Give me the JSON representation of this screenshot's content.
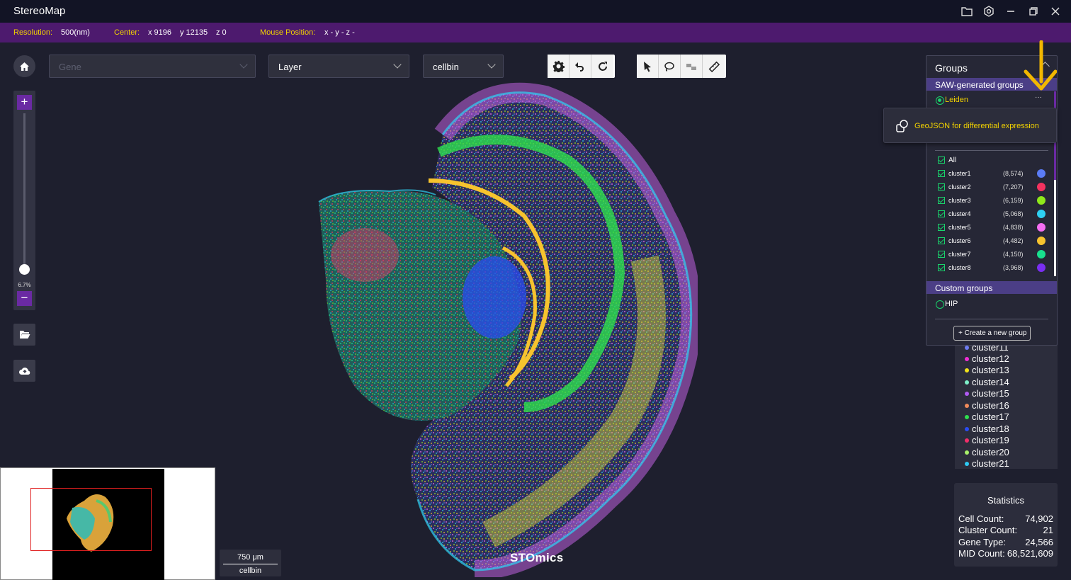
{
  "app": {
    "title": "StereoMap"
  },
  "infobar": {
    "resolution_label": "Resolution:",
    "resolution_value": "500(nm)",
    "center_label": "Center:",
    "center_x": "x 9196",
    "center_y": "y 12135",
    "center_z": "z 0",
    "mouse_label": "Mouse Position:",
    "mouse_value": "x -  y -  z -"
  },
  "toolbar": {
    "gene_placeholder": "Gene",
    "layer_label": "Layer",
    "bin_label": "cellbin"
  },
  "zoom": {
    "level": "6.7%",
    "plus": "+",
    "minus": "−"
  },
  "scale": {
    "value": "750 μm",
    "mode": "cellbin"
  },
  "brand": "STOmics",
  "groups": {
    "title": "Groups",
    "saw_header": "SAW-generated groups",
    "leiden_label": "Leiden",
    "more_label": "···",
    "all_label": "All",
    "clusters": [
      {
        "name": "cluster1",
        "count": "(8,574)",
        "color": "#5b7cf6"
      },
      {
        "name": "cluster2",
        "count": "(7,207)",
        "color": "#f5325f"
      },
      {
        "name": "cluster3",
        "count": "(6,159)",
        "color": "#8fe81a"
      },
      {
        "name": "cluster4",
        "count": "(5,068)",
        "color": "#2ed0f2"
      },
      {
        "name": "cluster5",
        "count": "(4,838)",
        "color": "#f56ef2"
      },
      {
        "name": "cluster6",
        "count": "(4,482)",
        "color": "#f7c32e"
      },
      {
        "name": "cluster7",
        "count": "(4,150)",
        "color": "#18e08e"
      },
      {
        "name": "cluster8",
        "count": "(3,968)",
        "color": "#7a2ef2"
      }
    ],
    "custom_header": "Custom groups",
    "custom_items": [
      "HIP"
    ],
    "create_label": "+  Create a new group"
  },
  "popover": {
    "text": "GeoJSON for differential expression"
  },
  "legend": [
    {
      "name": "cluster11",
      "color": "#6d7cf0"
    },
    {
      "name": "cluster12",
      "color": "#f02ed6"
    },
    {
      "name": "cluster13",
      "color": "#f2e21a"
    },
    {
      "name": "cluster14",
      "color": "#7ef0c8"
    },
    {
      "name": "cluster15",
      "color": "#b05af2"
    },
    {
      "name": "cluster16",
      "color": "#f08a5a"
    },
    {
      "name": "cluster17",
      "color": "#2ee04e"
    },
    {
      "name": "cluster18",
      "color": "#2a4cf2"
    },
    {
      "name": "cluster19",
      "color": "#f22e6a"
    },
    {
      "name": "cluster20",
      "color": "#a8f06a"
    },
    {
      "name": "cluster21",
      "color": "#2ec8f2"
    }
  ],
  "statistics": {
    "title": "Statistics",
    "rows": [
      {
        "key": "Cell Count:",
        "value": "74,902"
      },
      {
        "key": "Cluster Count:",
        "value": "21"
      },
      {
        "key": "Gene Type:",
        "value": "24,566"
      },
      {
        "key": "MID Count:",
        "value": "68,521,609"
      }
    ]
  },
  "icons": {
    "home": "home-icon",
    "folder": "folder-icon",
    "settings": "gear-icon",
    "undo": "undo-icon",
    "refresh": "refresh-icon",
    "select": "pointer-icon",
    "lasso": "lasso-icon",
    "ruler": "ruler-icon",
    "upload": "cloud-upload-icon"
  }
}
